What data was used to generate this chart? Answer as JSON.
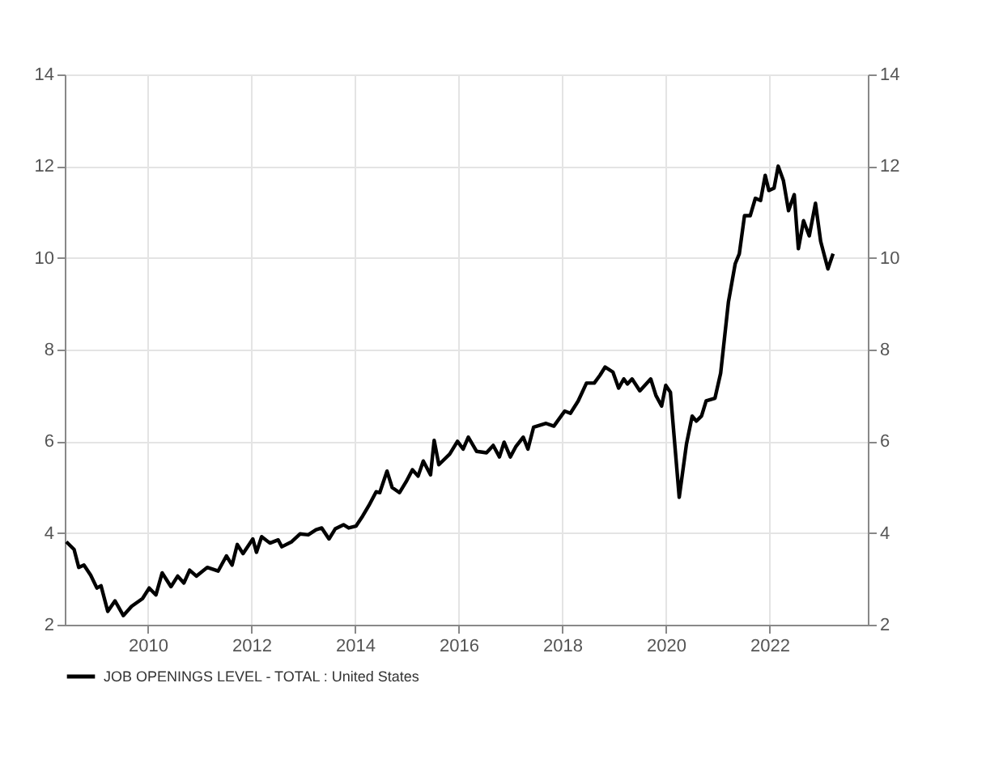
{
  "chart_data": {
    "type": "line",
    "x": [
      2008.43,
      2008.58,
      2008.67,
      2008.77,
      2008.9,
      2009.02,
      2009.1,
      2009.23,
      2009.37,
      2009.53,
      2009.69,
      2009.9,
      2010.03,
      2010.16,
      2010.28,
      2010.45,
      2010.58,
      2010.7,
      2010.81,
      2010.94,
      2011.15,
      2011.36,
      2011.52,
      2011.63,
      2011.73,
      2011.84,
      2012.03,
      2012.1,
      2012.2,
      2012.36,
      2012.52,
      2012.59,
      2012.78,
      2012.94,
      2013.1,
      2013.25,
      2013.36,
      2013.5,
      2013.62,
      2013.78,
      2013.88,
      2014.02,
      2014.15,
      2014.27,
      2014.41,
      2014.48,
      2014.62,
      2014.72,
      2014.86,
      2014.99,
      2015.11,
      2015.22,
      2015.32,
      2015.46,
      2015.53,
      2015.62,
      2015.83,
      2015.98,
      2016.09,
      2016.19,
      2016.35,
      2016.54,
      2016.67,
      2016.79,
      2016.88,
      2017.0,
      2017.11,
      2017.25,
      2017.34,
      2017.45,
      2017.69,
      2017.84,
      2018.05,
      2018.16,
      2018.31,
      2018.47,
      2018.62,
      2018.73,
      2018.83,
      2018.98,
      2019.09,
      2019.19,
      2019.26,
      2019.35,
      2019.5,
      2019.71,
      2019.81,
      2019.92,
      2020.0,
      2020.09,
      2020.26,
      2020.4,
      2020.51,
      2020.59,
      2020.69,
      2020.78,
      2020.95,
      2021.06,
      2021.21,
      2021.34,
      2021.42,
      2021.52,
      2021.63,
      2021.73,
      2021.83,
      2021.92,
      2021.99,
      2022.09,
      2022.17,
      2022.27,
      2022.37,
      2022.48,
      2022.56,
      2022.66,
      2022.77,
      2022.89,
      2022.99,
      2023.13,
      2023.23
    ],
    "series": [
      {
        "name": "JOB OPENINGS LEVEL - TOTAL : United States",
        "color": "#000000",
        "values": [
          3.81,
          3.64,
          3.25,
          3.3,
          3.08,
          2.8,
          2.85,
          2.29,
          2.52,
          2.2,
          2.4,
          2.57,
          2.8,
          2.65,
          3.13,
          2.83,
          3.06,
          2.91,
          3.19,
          3.06,
          3.25,
          3.17,
          3.5,
          3.3,
          3.75,
          3.55,
          3.87,
          3.58,
          3.92,
          3.78,
          3.85,
          3.7,
          3.81,
          3.98,
          3.96,
          4.07,
          4.11,
          3.87,
          4.09,
          4.18,
          4.11,
          4.15,
          4.37,
          4.6,
          4.9,
          4.88,
          5.35,
          4.99,
          4.88,
          5.12,
          5.38,
          5.24,
          5.57,
          5.27,
          6.02,
          5.49,
          5.72,
          6.0,
          5.83,
          6.09,
          5.78,
          5.75,
          5.91,
          5.66,
          5.98,
          5.66,
          5.89,
          6.09,
          5.83,
          6.31,
          6.39,
          6.33,
          6.66,
          6.61,
          6.88,
          7.27,
          7.27,
          7.44,
          7.62,
          7.51,
          7.16,
          7.36,
          7.25,
          7.36,
          7.1,
          7.36,
          7.0,
          6.77,
          7.22,
          7.07,
          4.78,
          5.94,
          6.55,
          6.44,
          6.55,
          6.88,
          6.94,
          7.49,
          9.04,
          9.87,
          10.09,
          10.92,
          10.92,
          11.3,
          11.25,
          11.8,
          11.47,
          11.52,
          12.0,
          11.69,
          11.03,
          11.38,
          10.2,
          10.81,
          10.48,
          11.19,
          10.36,
          9.76,
          10.09
        ]
      }
    ],
    "xlim": [
      2008.4,
      2023.9
    ],
    "xticks": [
      2010,
      2012,
      2014,
      2016,
      2018,
      2020,
      2022
    ],
    "ylim": [
      2,
      14
    ],
    "yticks": [
      2,
      4,
      6,
      8,
      10,
      12,
      14
    ],
    "y2lim": [
      2,
      14
    ],
    "y2ticks": [
      2,
      4,
      6,
      8,
      10,
      12,
      14
    ],
    "grid": true,
    "legend": "bottom",
    "line_style": "solid",
    "marker": "none"
  }
}
